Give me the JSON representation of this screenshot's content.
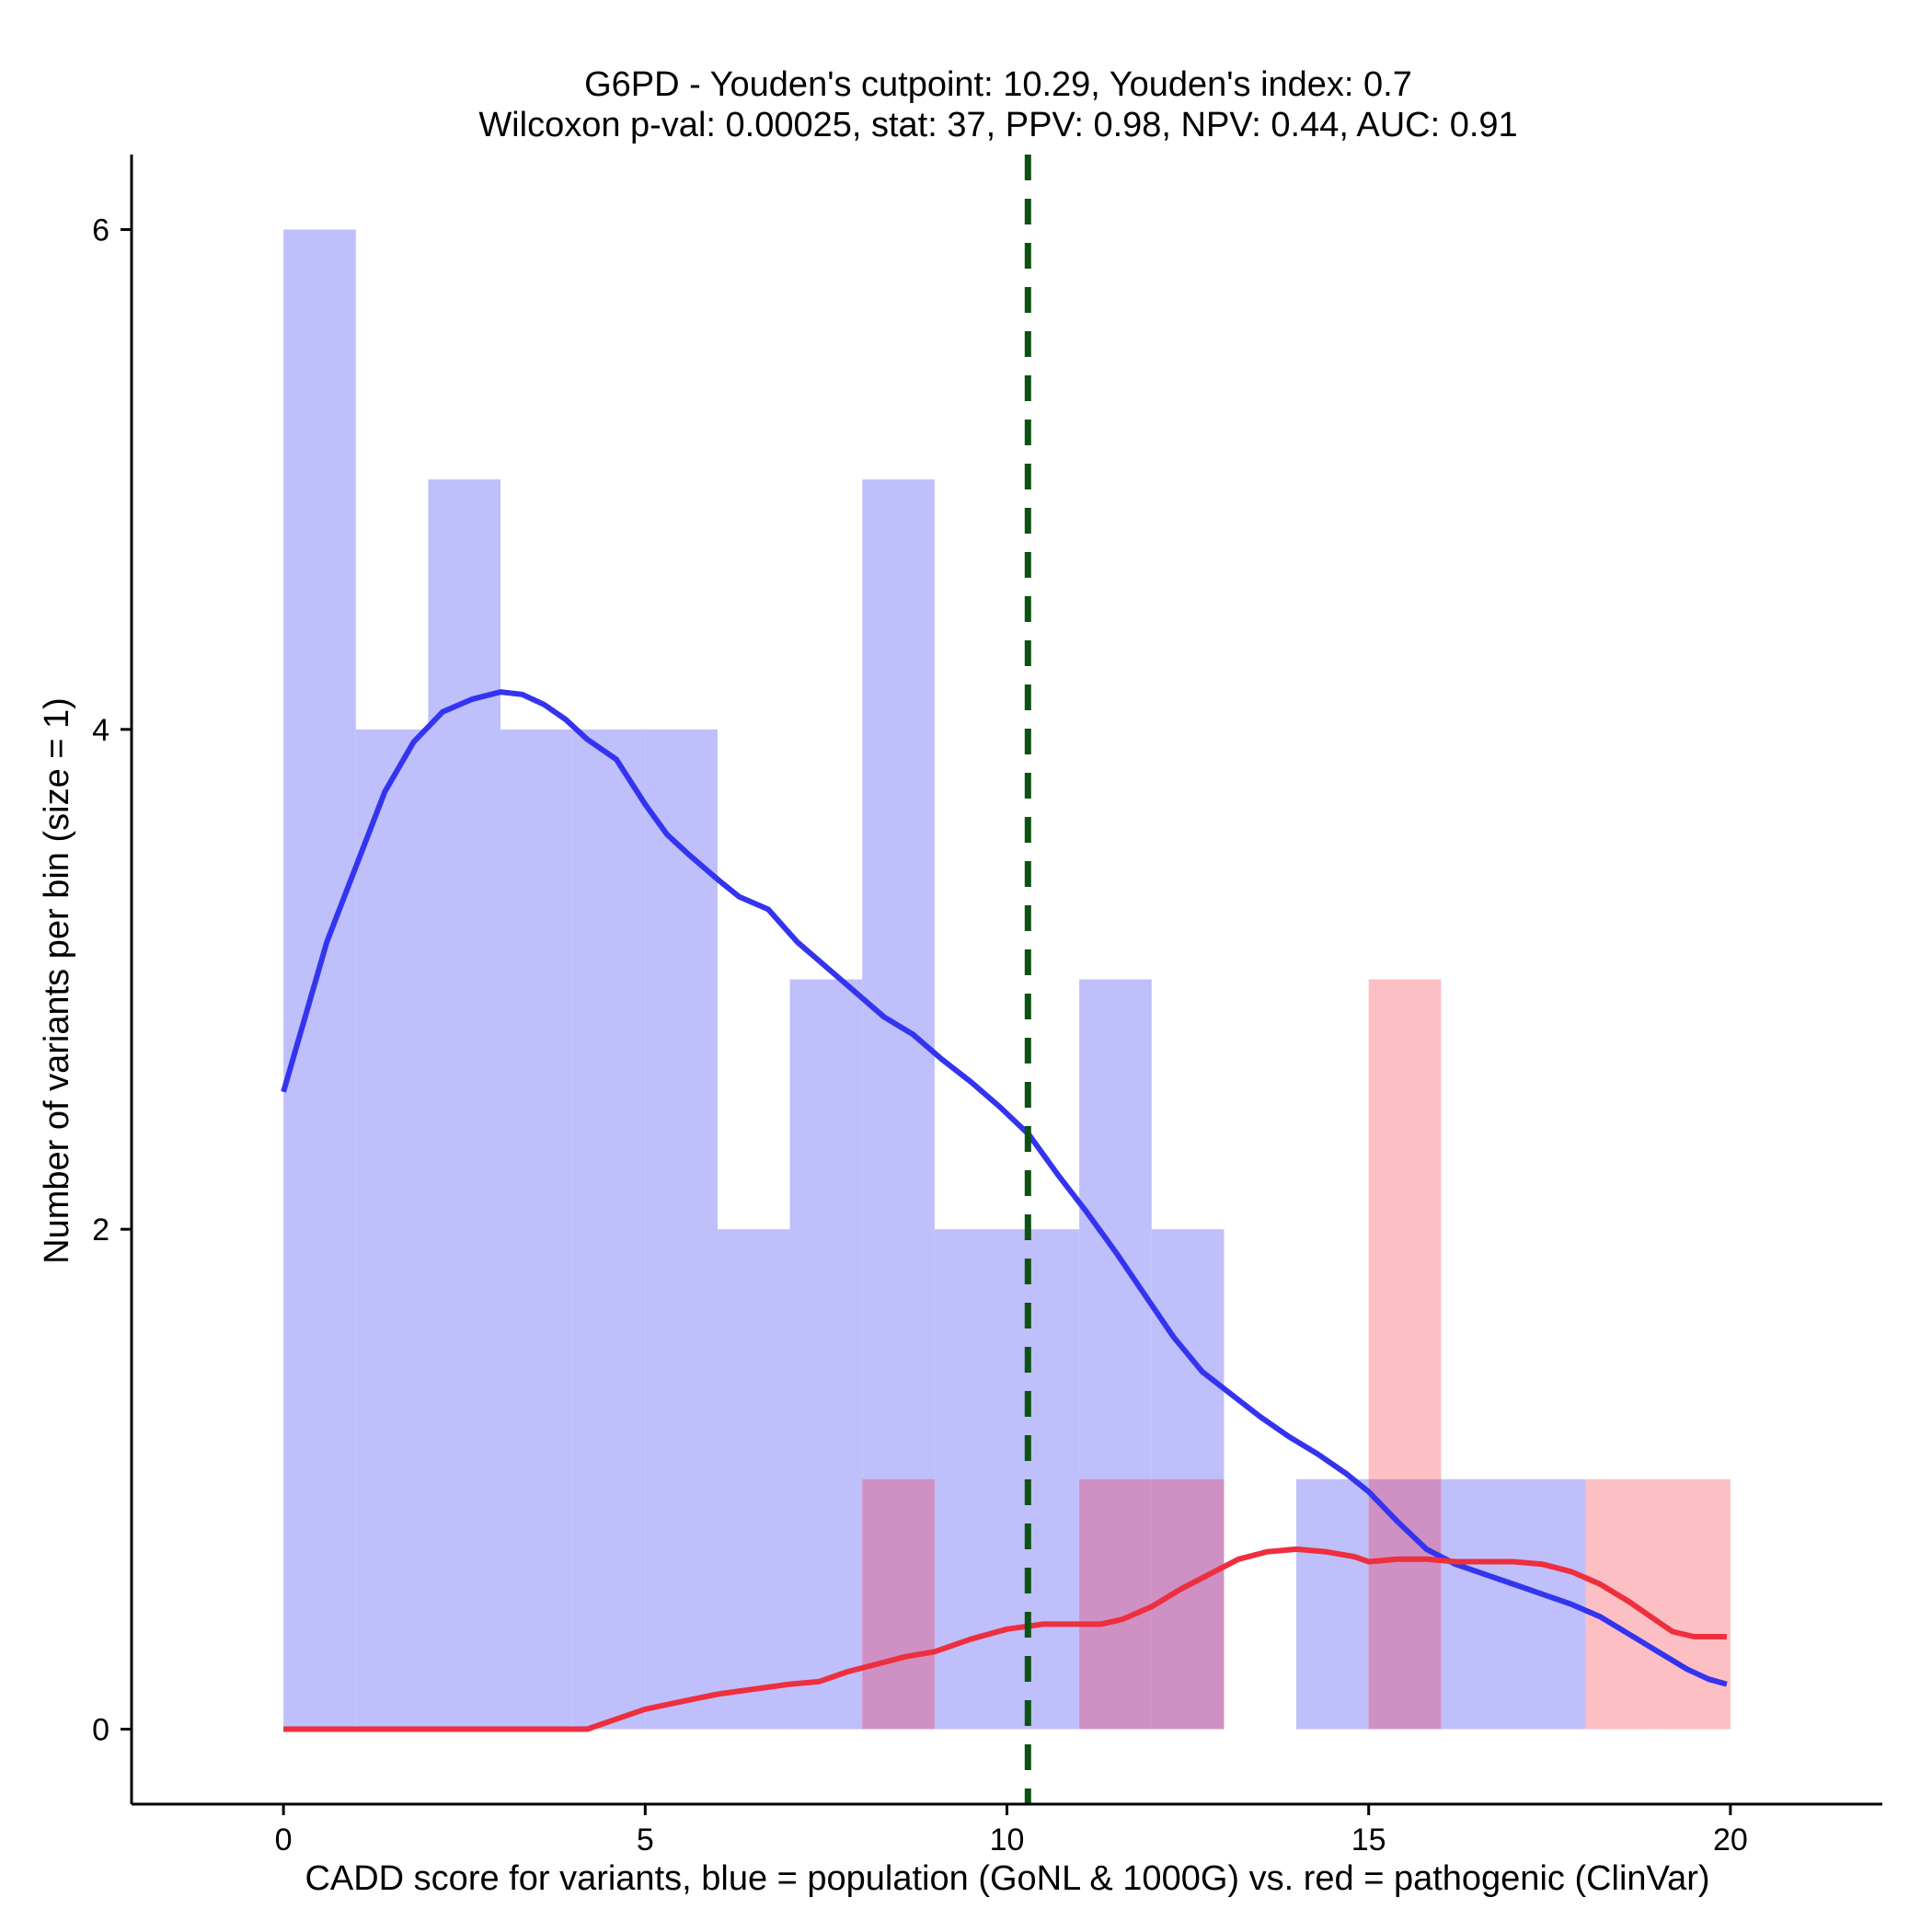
{
  "chart_data": {
    "type": "histogram",
    "title_line1": "G6PD - Youden's cutpoint: 10.29, Youden's index: 0.7",
    "title_line2": "Wilcoxon p-val: 0.00025, stat: 37, PPV: 0.98, NPV: 0.44, AUC: 0.91",
    "xlabel": "CADD score for variants, blue = population (GoNL & 1000G) vs. red = pathogenic (ClinVar)",
    "ylabel": "Number of variants per bin (size = 1)",
    "xlim": [
      -2.1,
      22.1
    ],
    "ylim": [
      -0.3,
      6.3
    ],
    "x_ticks": [
      0,
      5,
      10,
      15,
      20
    ],
    "y_ticks": [
      0,
      2,
      4,
      6
    ],
    "cutpoint": 10.29,
    "bin_width": 1,
    "colors": {
      "population_fill": "#bfbffb",
      "pathogenic_fill": "#fcbfc3",
      "overlap_fill": "#cf90c3",
      "population_line": "#3434f0",
      "pathogenic_line": "#ed2f3e",
      "cutpoint_line": "#0c5312"
    },
    "series": [
      {
        "name": "population (GoNL & 1000G)",
        "bin_starts": [
          0,
          1,
          2,
          3,
          4,
          5,
          6,
          7,
          8,
          9,
          10,
          11,
          12,
          13,
          14,
          15,
          16,
          17,
          18,
          19
        ],
        "counts": [
          6,
          4,
          5,
          4,
          4,
          4,
          2,
          3,
          5,
          2,
          2,
          3,
          2,
          0,
          1,
          1,
          1,
          1,
          0,
          0
        ],
        "density_x": [
          0,
          0.3,
          0.6,
          1,
          1.4,
          1.8,
          2.2,
          2.6,
          3,
          3.3,
          3.6,
          3.9,
          4.2,
          4.6,
          5,
          5.3,
          5.6,
          6,
          6.3,
          6.7,
          7.1,
          7.5,
          7.9,
          8.3,
          8.7,
          9.1,
          9.5,
          9.9,
          10.3,
          10.7,
          11.1,
          11.5,
          11.9,
          12.3,
          12.7,
          13.1,
          13.5,
          13.9,
          14.3,
          14.7,
          15,
          15.4,
          15.8,
          16.2,
          16.6,
          17,
          17.4,
          17.8,
          18.2,
          18.6,
          19,
          19.4,
          19.7,
          19.95
        ],
        "density_y": [
          2.55,
          2.85,
          3.15,
          3.45,
          3.75,
          3.95,
          4.07,
          4.12,
          4.15,
          4.14,
          4.1,
          4.04,
          3.96,
          3.88,
          3.7,
          3.58,
          3.5,
          3.4,
          3.33,
          3.28,
          3.15,
          3.05,
          2.95,
          2.85,
          2.78,
          2.68,
          2.59,
          2.49,
          2.38,
          2.22,
          2.07,
          1.91,
          1.74,
          1.57,
          1.43,
          1.34,
          1.25,
          1.17,
          1.1,
          1.02,
          0.95,
          0.83,
          0.72,
          0.66,
          0.62,
          0.58,
          0.54,
          0.5,
          0.45,
          0.38,
          0.31,
          0.24,
          0.2,
          0.18
        ]
      },
      {
        "name": "pathogenic (ClinVar)",
        "bin_starts": [
          0,
          1,
          2,
          3,
          4,
          5,
          6,
          7,
          8,
          9,
          10,
          11,
          12,
          13,
          14,
          15,
          16,
          17,
          18,
          19
        ],
        "counts": [
          0,
          0,
          0,
          0,
          0,
          0,
          0,
          0,
          1,
          0,
          0,
          1,
          1,
          0,
          0,
          3,
          0,
          0,
          1,
          1
        ],
        "density_x": [
          0,
          1,
          2,
          3,
          4,
          4.2,
          4.6,
          5,
          5.5,
          6,
          6.5,
          7,
          7.4,
          7.8,
          8.2,
          8.6,
          9,
          9.5,
          10,
          10.5,
          11,
          11.3,
          11.6,
          12,
          12.4,
          12.8,
          13.2,
          13.6,
          14,
          14.4,
          14.8,
          15,
          15.4,
          15.8,
          16.2,
          16.6,
          17,
          17.4,
          17.8,
          18.2,
          18.6,
          19,
          19.2,
          19.5,
          19.95
        ],
        "density_y": [
          0,
          0,
          0,
          0,
          0,
          0,
          0.04,
          0.08,
          0.11,
          0.14,
          0.16,
          0.18,
          0.19,
          0.23,
          0.26,
          0.29,
          0.31,
          0.36,
          0.4,
          0.42,
          0.42,
          0.42,
          0.44,
          0.49,
          0.56,
          0.62,
          0.68,
          0.71,
          0.72,
          0.71,
          0.69,
          0.67,
          0.68,
          0.68,
          0.67,
          0.67,
          0.67,
          0.66,
          0.63,
          0.58,
          0.51,
          0.43,
          0.39,
          0.37,
          0.37
        ]
      }
    ]
  }
}
